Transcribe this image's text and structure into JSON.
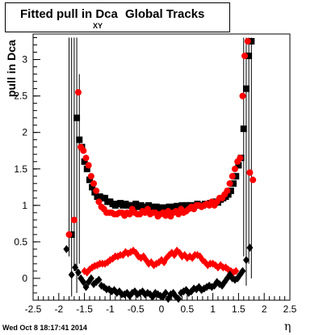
{
  "title": {
    "main": "Fitted pull in Dca",
    "subscript": "XY",
    "rest": "Global Tracks"
  },
  "timestamp": "Wed Oct  8 18:17:41 2014",
  "chart_data": {
    "type": "scatter",
    "title": "Fitted pull in Dca XY Global Tracks",
    "xlabel": "η",
    "ylabel": "pull in Dca",
    "ylabel_sub": "XY",
    "xlim": [
      -2.5,
      2.5
    ],
    "ylim": [
      -0.3,
      3.35
    ],
    "xticks": [
      -2.5,
      -2,
      -1.5,
      -1,
      -0.5,
      0,
      0.5,
      1,
      1.5,
      2,
      2.5
    ],
    "xtick_labels": [
      "-2.5",
      "-2",
      "-1.5",
      "-1",
      "-0.5",
      "0",
      "0.5",
      "1",
      "1.5",
      "2",
      "2.5"
    ],
    "yticks": [
      0,
      0.5,
      1,
      1.5,
      2,
      2.5,
      3
    ],
    "ytick_labels": [
      "0",
      "0.5",
      "1",
      "1.5",
      "2",
      "2.5",
      "3"
    ],
    "grid": false,
    "colors": {
      "black": "#000000",
      "red": "#ff0000"
    },
    "series": [
      {
        "marker": "square",
        "color": "#000000",
        "x": [
          -1.75,
          -1.65,
          -1.6,
          -1.55,
          -1.5,
          -1.45,
          -1.4,
          -1.35,
          -1.3,
          -1.25,
          -1.2,
          -1.15,
          -1.1,
          -1.05,
          -1.0,
          -0.95,
          -0.9,
          -0.85,
          -0.8,
          -0.75,
          -0.7,
          -0.65,
          -0.6,
          -0.55,
          -0.5,
          -0.45,
          -0.4,
          -0.35,
          -0.3,
          -0.25,
          -0.2,
          -0.15,
          -0.1,
          -0.05,
          0.0,
          0.05,
          0.1,
          0.15,
          0.2,
          0.25,
          0.3,
          0.35,
          0.4,
          0.45,
          0.5,
          0.55,
          0.6,
          0.65,
          0.7,
          0.75,
          0.8,
          0.85,
          0.9,
          0.95,
          1.0,
          1.05,
          1.1,
          1.15,
          1.2,
          1.25,
          1.3,
          1.35,
          1.4,
          1.45,
          1.5,
          1.55,
          1.6,
          1.65,
          1.7,
          1.75
        ],
        "y": [
          0.6,
          2.2,
          1.9,
          1.8,
          1.6,
          1.5,
          1.35,
          1.25,
          1.18,
          1.12,
          1.12,
          1.1,
          1.1,
          1.05,
          1.05,
          1.02,
          1.0,
          1.02,
          1.03,
          1.0,
          1.02,
          1.0,
          1.0,
          1.0,
          1.02,
          0.98,
          1.0,
          0.98,
          0.98,
          1.0,
          0.98,
          0.97,
          0.98,
          0.96,
          0.97,
          0.97,
          0.96,
          0.98,
          0.97,
          0.98,
          0.99,
          0.98,
          1.0,
          0.97,
          1.0,
          1.0,
          0.99,
          1.0,
          1.02,
          1.0,
          1.0,
          1.02,
          1.02,
          1.03,
          1.03,
          1.05,
          1.04,
          1.08,
          1.1,
          1.12,
          1.15,
          1.2,
          1.3,
          1.4,
          1.55,
          1.65,
          2.05,
          2.6,
          3.05,
          3.25
        ]
      },
      {
        "marker": "circle",
        "color": "#ff0000",
        "x": [
          -1.8,
          -1.7,
          -1.62,
          -1.57,
          -1.52,
          -1.47,
          -1.42,
          -1.37,
          -1.32,
          -1.27,
          -1.22,
          -1.17,
          -1.12,
          -1.07,
          -1.02,
          -0.97,
          -0.92,
          -0.87,
          -0.82,
          -0.77,
          -0.72,
          -0.67,
          -0.62,
          -0.57,
          -0.52,
          -0.47,
          -0.42,
          -0.37,
          -0.32,
          -0.27,
          -0.22,
          -0.17,
          -0.12,
          -0.07,
          -0.02,
          0.03,
          0.08,
          0.13,
          0.18,
          0.23,
          0.28,
          0.33,
          0.38,
          0.43,
          0.48,
          0.53,
          0.58,
          0.63,
          0.68,
          0.73,
          0.78,
          0.83,
          0.88,
          0.93,
          0.98,
          1.03,
          1.08,
          1.13,
          1.18,
          1.23,
          1.28,
          1.33,
          1.38,
          1.43,
          1.48,
          1.53,
          1.58,
          1.62,
          1.68,
          1.72,
          1.78
        ],
        "y": [
          0.6,
          0.8,
          2.55,
          1.8,
          1.75,
          1.65,
          1.55,
          1.4,
          1.3,
          1.2,
          1.05,
          0.98,
          0.95,
          0.9,
          0.9,
          0.9,
          0.88,
          0.88,
          0.9,
          0.9,
          0.86,
          0.9,
          0.88,
          0.95,
          0.9,
          0.88,
          0.88,
          0.92,
          0.9,
          0.95,
          0.88,
          0.9,
          0.9,
          0.85,
          0.88,
          0.9,
          0.86,
          0.92,
          0.85,
          0.9,
          0.92,
          0.88,
          0.95,
          0.9,
          0.92,
          0.95,
          0.98,
          0.95,
          1.0,
          1.0,
          0.98,
          1.0,
          1.02,
          1.0,
          1.05,
          1.0,
          1.05,
          1.1,
          1.1,
          1.15,
          1.2,
          1.3,
          1.4,
          1.5,
          1.6,
          1.65,
          2.5,
          3.05,
          3.25,
          1.45,
          1.35
        ]
      },
      {
        "marker": "diamond",
        "color": "#ff0000",
        "x": [
          -1.5,
          -1.45,
          -1.4,
          -1.35,
          -1.3,
          -1.25,
          -1.2,
          -1.15,
          -1.1,
          -1.05,
          -1.0,
          -0.95,
          -0.9,
          -0.85,
          -0.8,
          -0.75,
          -0.7,
          -0.65,
          -0.6,
          -0.55,
          -0.5,
          -0.45,
          -0.4,
          -0.35,
          -0.3,
          -0.25,
          -0.2,
          -0.15,
          -0.1,
          -0.05,
          0.0,
          0.05,
          0.1,
          0.15,
          0.2,
          0.25,
          0.3,
          0.35,
          0.4,
          0.45,
          0.5,
          0.55,
          0.6,
          0.65,
          0.7,
          0.75,
          0.8,
          0.85,
          0.9,
          0.95,
          1.0,
          1.05,
          1.1,
          1.15,
          1.2,
          1.25,
          1.3,
          1.35,
          1.4,
          1.45
        ],
        "y": [
          0.1,
          0.08,
          0.12,
          0.15,
          0.17,
          0.18,
          0.2,
          0.2,
          0.2,
          0.22,
          0.25,
          0.27,
          0.3,
          0.3,
          0.32,
          0.32,
          0.36,
          0.34,
          0.36,
          0.38,
          0.35,
          0.3,
          0.28,
          0.3,
          0.25,
          0.2,
          0.22,
          0.18,
          0.2,
          0.22,
          0.25,
          0.22,
          0.28,
          0.32,
          0.35,
          0.32,
          0.38,
          0.35,
          0.3,
          0.32,
          0.28,
          0.3,
          0.28,
          0.32,
          0.32,
          0.3,
          0.25,
          0.22,
          0.18,
          0.2,
          0.2,
          0.18,
          0.15,
          0.18,
          0.15,
          0.15,
          0.12,
          0.1,
          0.08,
          0.1
        ]
      },
      {
        "marker": "diamond",
        "color": "#000000",
        "x": [
          -1.85,
          -1.75,
          -1.68,
          -1.62,
          -1.57,
          -1.52,
          -1.47,
          -1.42,
          -1.37,
          -1.32,
          -1.27,
          -1.22,
          -1.17,
          -1.12,
          -1.07,
          -1.02,
          -0.97,
          -0.92,
          -0.87,
          -0.82,
          -0.77,
          -0.72,
          -0.67,
          -0.62,
          -0.57,
          -0.52,
          -0.47,
          -0.42,
          -0.37,
          -0.32,
          -0.27,
          -0.22,
          -0.17,
          -0.12,
          -0.07,
          -0.02,
          0.03,
          0.08,
          0.13,
          0.18,
          0.23,
          0.28,
          0.33,
          0.38,
          0.43,
          0.48,
          0.53,
          0.58,
          0.63,
          0.68,
          0.73,
          0.78,
          0.83,
          0.88,
          0.93,
          0.98,
          1.03,
          1.08,
          1.13,
          1.18,
          1.23,
          1.28,
          1.33,
          1.38,
          1.43,
          1.48,
          1.53,
          1.58,
          1.65,
          1.72
        ],
        "y": [
          0.4,
          0.05,
          0.15,
          0.08,
          0.0,
          -0.05,
          -0.12,
          -0.05,
          0.0,
          -0.08,
          -0.05,
          -0.02,
          -0.1,
          -0.12,
          -0.15,
          -0.15,
          -0.18,
          -0.16,
          -0.2,
          -0.18,
          -0.22,
          -0.22,
          -0.2,
          -0.24,
          -0.2,
          -0.18,
          -0.22,
          -0.2,
          -0.18,
          -0.22,
          -0.2,
          -0.22,
          -0.25,
          -0.2,
          -0.22,
          -0.24,
          -0.25,
          -0.2,
          -0.28,
          -0.22,
          -0.2,
          -0.25,
          -0.28,
          -0.2,
          -0.18,
          -0.16,
          -0.2,
          -0.18,
          -0.14,
          -0.15,
          -0.12,
          -0.16,
          -0.14,
          -0.12,
          -0.1,
          -0.12,
          -0.1,
          -0.05,
          -0.08,
          -0.1,
          -0.05,
          0.0,
          0.05,
          0.0,
          -0.02,
          0.0,
          0.05,
          0.1,
          0.25,
          0.42
        ]
      }
    ]
  }
}
